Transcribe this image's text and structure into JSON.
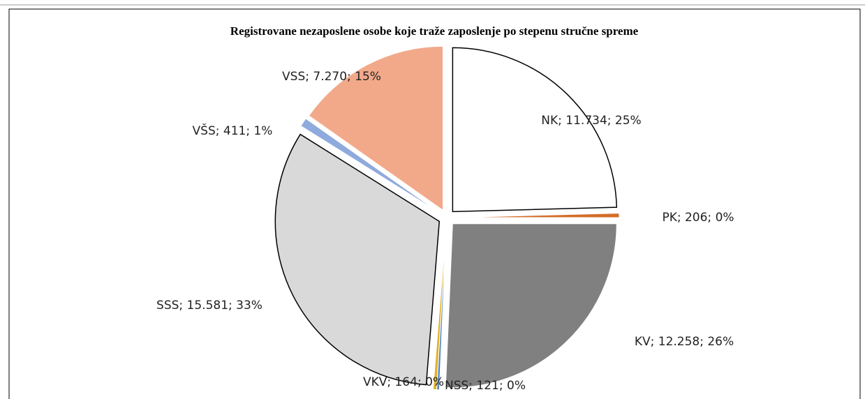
{
  "chart_data": {
    "type": "pie",
    "title": "Registrovane nezaposlene osobe koje traže zaposlenje po stepenu stručne spreme",
    "categories": [
      "NK",
      "PK",
      "KV",
      "NSS",
      "VKV",
      "SSS",
      "VŠS",
      "VSS"
    ],
    "values": [
      11734,
      206,
      12258,
      121,
      164,
      15581,
      411,
      7270
    ],
    "value_labels": [
      "NK; 11.734; 25%",
      "PK; 206; 0%",
      "KV; 12.258; 26%",
      "NSS; 121; 0%",
      "VKV; 164; 0%",
      "SSS; 15.581; 33%",
      "VŠS; 411; 1%",
      "VSS; 7.270; 15%"
    ],
    "colors": [
      "#ffffff",
      "#d36d29",
      "#808080",
      "#4f86c6",
      "#e2b124",
      "#d9d9d9",
      "#8faadc",
      "#f2a98a"
    ]
  }
}
